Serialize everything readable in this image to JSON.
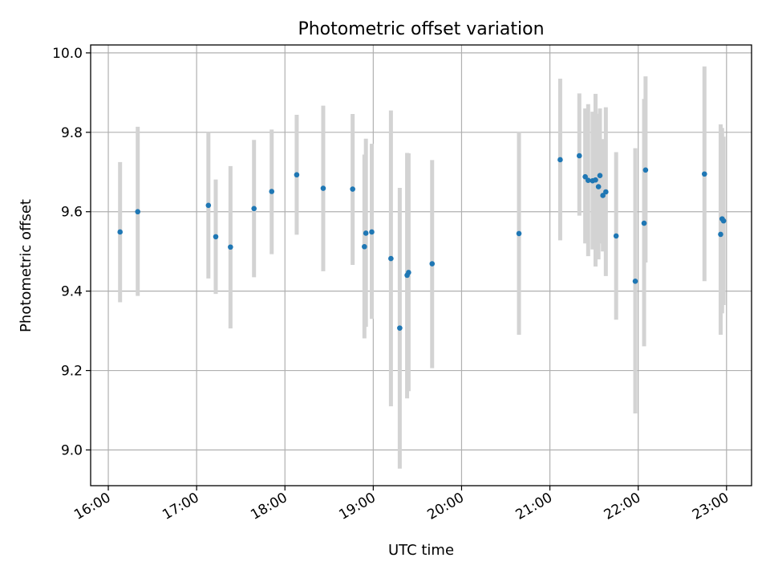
{
  "chart_data": {
    "type": "scatter",
    "title": "Photometric offset variation",
    "xlabel": "UTC time",
    "ylabel": "Photometric offset",
    "xlim": [
      "15:48",
      "23:17"
    ],
    "ylim": [
      8.91,
      10.02
    ],
    "x_ticks": [
      "16:00",
      "17:00",
      "18:00",
      "19:00",
      "20:00",
      "21:00",
      "22:00",
      "23:00"
    ],
    "y_ticks": [
      9.0,
      9.2,
      9.4,
      9.6,
      9.8,
      10.0
    ],
    "y_tick_labels": [
      "9.0",
      "9.2",
      "9.4",
      "9.6",
      "9.8",
      "10.0"
    ],
    "grid": true,
    "colors": {
      "marker": "#1f77b4",
      "errorbar": "#d3d3d3",
      "grid": "#b0b0b0"
    },
    "points": [
      {
        "x": "16:08",
        "y": 9.549,
        "lo": 9.372,
        "hi": 9.725
      },
      {
        "x": "16:20",
        "y": 9.6,
        "lo": 9.388,
        "hi": 9.814
      },
      {
        "x": "17:08",
        "y": 9.616,
        "lo": 9.432,
        "hi": 9.8
      },
      {
        "x": "17:13",
        "y": 9.537,
        "lo": 9.393,
        "hi": 9.681
      },
      {
        "x": "17:23",
        "y": 9.511,
        "lo": 9.306,
        "hi": 9.715
      },
      {
        "x": "17:39",
        "y": 9.608,
        "lo": 9.435,
        "hi": 9.781
      },
      {
        "x": "17:51",
        "y": 9.651,
        "lo": 9.493,
        "hi": 9.807
      },
      {
        "x": "18:08",
        "y": 9.693,
        "lo": 9.542,
        "hi": 9.844
      },
      {
        "x": "18:26",
        "y": 9.659,
        "lo": 9.45,
        "hi": 9.867
      },
      {
        "x": "18:46",
        "y": 9.657,
        "lo": 9.466,
        "hi": 9.846
      },
      {
        "x": "18:54",
        "y": 9.512,
        "lo": 9.281,
        "hi": 9.744
      },
      {
        "x": "18:55",
        "y": 9.546,
        "lo": 9.31,
        "hi": 9.784
      },
      {
        "x": "18:59",
        "y": 9.549,
        "lo": 9.33,
        "hi": 9.771
      },
      {
        "x": "19:12",
        "y": 9.482,
        "lo": 9.11,
        "hi": 9.855
      },
      {
        "x": "19:18",
        "y": 9.307,
        "lo": 8.953,
        "hi": 9.66
      },
      {
        "x": "19:23",
        "y": 9.44,
        "lo": 9.13,
        "hi": 9.748
      },
      {
        "x": "19:24",
        "y": 9.447,
        "lo": 9.148,
        "hi": 9.747
      },
      {
        "x": "19:40",
        "y": 9.469,
        "lo": 9.206,
        "hi": 9.73
      },
      {
        "x": "20:39",
        "y": 9.545,
        "lo": 9.29,
        "hi": 9.802
      },
      {
        "x": "21:07",
        "y": 9.731,
        "lo": 9.528,
        "hi": 9.935
      },
      {
        "x": "21:20",
        "y": 9.741,
        "lo": 9.59,
        "hi": 9.898
      },
      {
        "x": "21:24",
        "y": 9.688,
        "lo": 9.52,
        "hi": 9.86
      },
      {
        "x": "21:26",
        "y": 9.679,
        "lo": 9.488,
        "hi": 9.871
      },
      {
        "x": "21:29",
        "y": 9.678,
        "lo": 9.505,
        "hi": 9.852
      },
      {
        "x": "21:31",
        "y": 9.68,
        "lo": 9.462,
        "hi": 9.897
      },
      {
        "x": "21:33",
        "y": 9.663,
        "lo": 9.48,
        "hi": 9.847
      },
      {
        "x": "21:34",
        "y": 9.691,
        "lo": 9.52,
        "hi": 9.86
      },
      {
        "x": "21:36",
        "y": 9.641,
        "lo": 9.5,
        "hi": 9.783
      },
      {
        "x": "21:38",
        "y": 9.65,
        "lo": 9.438,
        "hi": 9.863
      },
      {
        "x": "21:45",
        "y": 9.539,
        "lo": 9.328,
        "hi": 9.75
      },
      {
        "x": "21:58",
        "y": 9.425,
        "lo": 9.092,
        "hi": 9.76
      },
      {
        "x": "22:04",
        "y": 9.571,
        "lo": 9.261,
        "hi": 9.884
      },
      {
        "x": "22:05",
        "y": 9.705,
        "lo": 9.472,
        "hi": 9.941
      },
      {
        "x": "22:45",
        "y": 9.695,
        "lo": 9.425,
        "hi": 9.966
      },
      {
        "x": "22:56",
        "y": 9.543,
        "lo": 9.29,
        "hi": 9.82
      },
      {
        "x": "22:57",
        "y": 9.582,
        "lo": 9.344,
        "hi": 9.811
      },
      {
        "x": "22:58",
        "y": 9.577,
        "lo": 9.365,
        "hi": 9.789
      }
    ]
  }
}
